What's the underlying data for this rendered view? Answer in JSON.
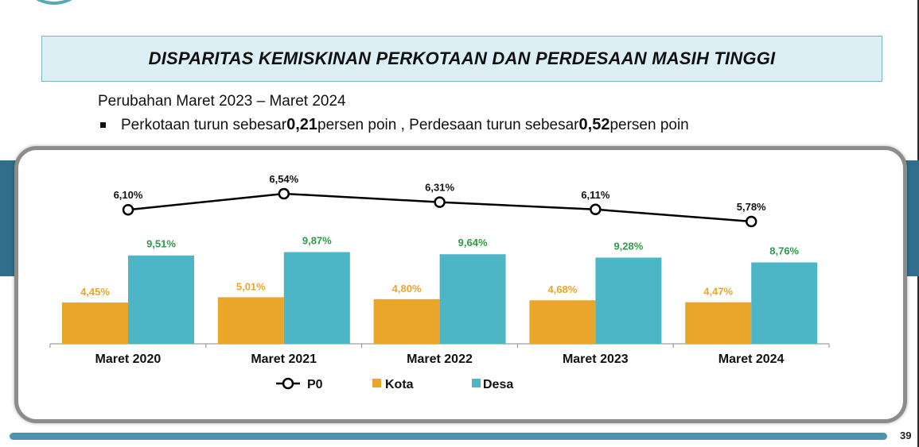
{
  "title": "DISPARITAS KEMISKINAN PERKOTAAN DAN PERDESAAN MASIH TINGGI",
  "subtitle": "Perubahan Maret 2023 – Maret 2024",
  "bullet": {
    "part1": "Perkotaan turun sebesar ",
    "value1": "0,21",
    "part2": " persen poin , Perdesaan turun sebesar ",
    "value2": "0,52",
    "part3": " persen poin"
  },
  "page_number": "39",
  "colors": {
    "kota": "#eaa629",
    "desa": "#4db6c6",
    "p0_line": "#000000",
    "kota_label": "#eaa629",
    "desa_label": "#2f9a48",
    "band": "#2f6f8c"
  },
  "chart_data": {
    "type": "bar",
    "categories": [
      "Maret 2020",
      "Maret 2021",
      "Maret 2022",
      "Maret 2023",
      "Maret 2024"
    ],
    "series": [
      {
        "name": "Kota",
        "values": [
          4.45,
          5.01,
          4.8,
          4.68,
          4.47
        ],
        "labels": [
          "4,45%",
          "5,01%",
          "4,80%",
          "4,68%",
          "4,47%"
        ]
      },
      {
        "name": "Desa",
        "values": [
          9.51,
          9.87,
          9.64,
          9.28,
          8.76
        ],
        "labels": [
          "9,51%",
          "9,87%",
          "9,64%",
          "9,28%",
          "8,76%"
        ]
      },
      {
        "name": "P0",
        "type": "line",
        "values": [
          6.1,
          6.54,
          6.31,
          6.11,
          5.78
        ],
        "labels": [
          "6,10%",
          "6,54%",
          "6,31%",
          "6,11%",
          "5,78%"
        ]
      }
    ],
    "legend": [
      "P0",
      "Kota",
      "Desa"
    ],
    "legend_position": "bottom",
    "grid": false
  }
}
